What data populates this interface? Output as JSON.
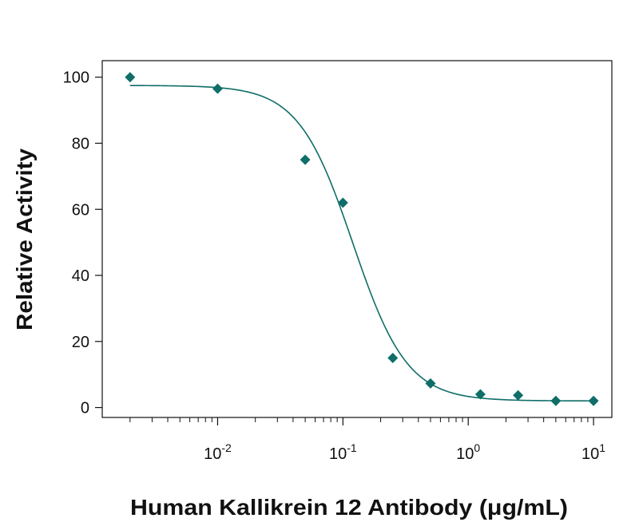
{
  "chart_data": {
    "type": "scatter",
    "xlabel": "Human Kallikrein 12 Antibody (μg/mL)",
    "ylabel": "Relative Activity",
    "x_scale": "log",
    "xlim": [
      0.0012,
      14
    ],
    "ylim": [
      -3,
      105
    ],
    "y_ticks": [
      0,
      20,
      40,
      60,
      80,
      100
    ],
    "x_major_ticks": [
      {
        "value": 0.01,
        "base": "10",
        "exp": "-2"
      },
      {
        "value": 0.1,
        "base": "10",
        "exp": "-1"
      },
      {
        "value": 1,
        "base": "10",
        "exp": "0"
      },
      {
        "value": 10,
        "base": "10",
        "exp": "1"
      }
    ],
    "grid": false,
    "marker": "diamond",
    "color": "#0f6e68",
    "series": [
      {
        "points": [
          {
            "x": 0.002,
            "y": 100
          },
          {
            "x": 0.01,
            "y": 96.5
          },
          {
            "x": 0.05,
            "y": 75
          },
          {
            "x": 0.1,
            "y": 62
          },
          {
            "x": 0.25,
            "y": 15
          },
          {
            "x": 0.5,
            "y": 7.3
          },
          {
            "x": 1.25,
            "y": 4
          },
          {
            "x": 2.5,
            "y": 3.7
          },
          {
            "x": 5,
            "y": 2
          },
          {
            "x": 10,
            "y": 2
          }
        ],
        "fit": {
          "model": "four-parameter logistic",
          "top": 97.5,
          "bottom": 2,
          "ic50": 0.12,
          "hill": 2.0
        }
      }
    ]
  }
}
